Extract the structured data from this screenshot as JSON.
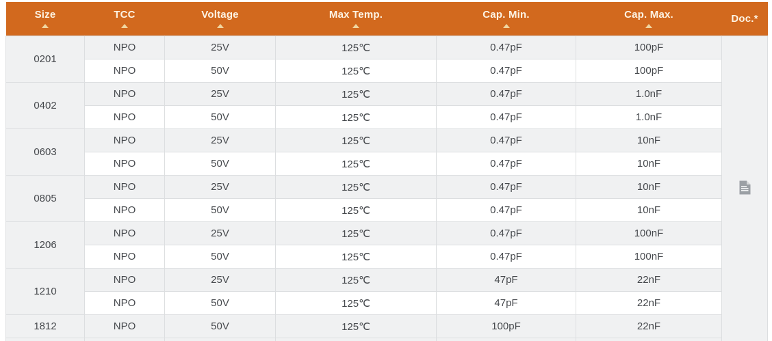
{
  "table": {
    "columns": [
      {
        "label": "Size",
        "sortable": true
      },
      {
        "label": "TCC",
        "sortable": true
      },
      {
        "label": "Voltage",
        "sortable": true
      },
      {
        "label": "Max Temp.",
        "sortable": true
      },
      {
        "label": "Cap. Min.",
        "sortable": true
      },
      {
        "label": "Cap. Max.",
        "sortable": true
      },
      {
        "label": "Doc.*",
        "sortable": false
      }
    ],
    "sort_icon": "ascending-triangle",
    "doc_icon": "document-icon",
    "groups": [
      {
        "size": "0201",
        "rows": [
          {
            "tcc": "NPO",
            "voltage": "25V",
            "max_temp": "125℃",
            "cap_min": "0.47pF",
            "cap_max": "100pF"
          },
          {
            "tcc": "NPO",
            "voltage": "50V",
            "max_temp": "125℃",
            "cap_min": "0.47pF",
            "cap_max": "100pF"
          }
        ]
      },
      {
        "size": "0402",
        "rows": [
          {
            "tcc": "NPO",
            "voltage": "25V",
            "max_temp": "125℃",
            "cap_min": "0.47pF",
            "cap_max": "1.0nF"
          },
          {
            "tcc": "NPO",
            "voltage": "50V",
            "max_temp": "125℃",
            "cap_min": "0.47pF",
            "cap_max": "1.0nF"
          }
        ]
      },
      {
        "size": "0603",
        "rows": [
          {
            "tcc": "NPO",
            "voltage": "25V",
            "max_temp": "125℃",
            "cap_min": "0.47pF",
            "cap_max": "10nF"
          },
          {
            "tcc": "NPO",
            "voltage": "50V",
            "max_temp": "125℃",
            "cap_min": "0.47pF",
            "cap_max": "10nF"
          }
        ]
      },
      {
        "size": "0805",
        "rows": [
          {
            "tcc": "NPO",
            "voltage": "25V",
            "max_temp": "125℃",
            "cap_min": "0.47pF",
            "cap_max": "10nF"
          },
          {
            "tcc": "NPO",
            "voltage": "50V",
            "max_temp": "125℃",
            "cap_min": "0.47pF",
            "cap_max": "10nF"
          }
        ]
      },
      {
        "size": "1206",
        "rows": [
          {
            "tcc": "NPO",
            "voltage": "25V",
            "max_temp": "125℃",
            "cap_min": "0.47pF",
            "cap_max": "100nF"
          },
          {
            "tcc": "NPO",
            "voltage": "50V",
            "max_temp": "125℃",
            "cap_min": "0.47pF",
            "cap_max": "100nF"
          }
        ]
      },
      {
        "size": "1210",
        "rows": [
          {
            "tcc": "NPO",
            "voltage": "25V",
            "max_temp": "125℃",
            "cap_min": "47pF",
            "cap_max": "22nF"
          },
          {
            "tcc": "NPO",
            "voltage": "50V",
            "max_temp": "125℃",
            "cap_min": "47pF",
            "cap_max": "22nF"
          }
        ]
      },
      {
        "size": "1812",
        "rows": [
          {
            "tcc": "NPO",
            "voltage": "50V",
            "max_temp": "125℃",
            "cap_min": "100pF",
            "cap_max": "22nF"
          }
        ]
      }
    ]
  },
  "colors": {
    "header_bg": "#d2691e",
    "header_text": "#fdf3e3",
    "sort_arrow": "#f0d5a0",
    "row_shade_bg": "#f0f1f2",
    "row_plain_bg": "#ffffff",
    "cell_border": "#dcdee0",
    "body_text": "#46494d",
    "doc_icon_fill": "#9ba0a5"
  }
}
